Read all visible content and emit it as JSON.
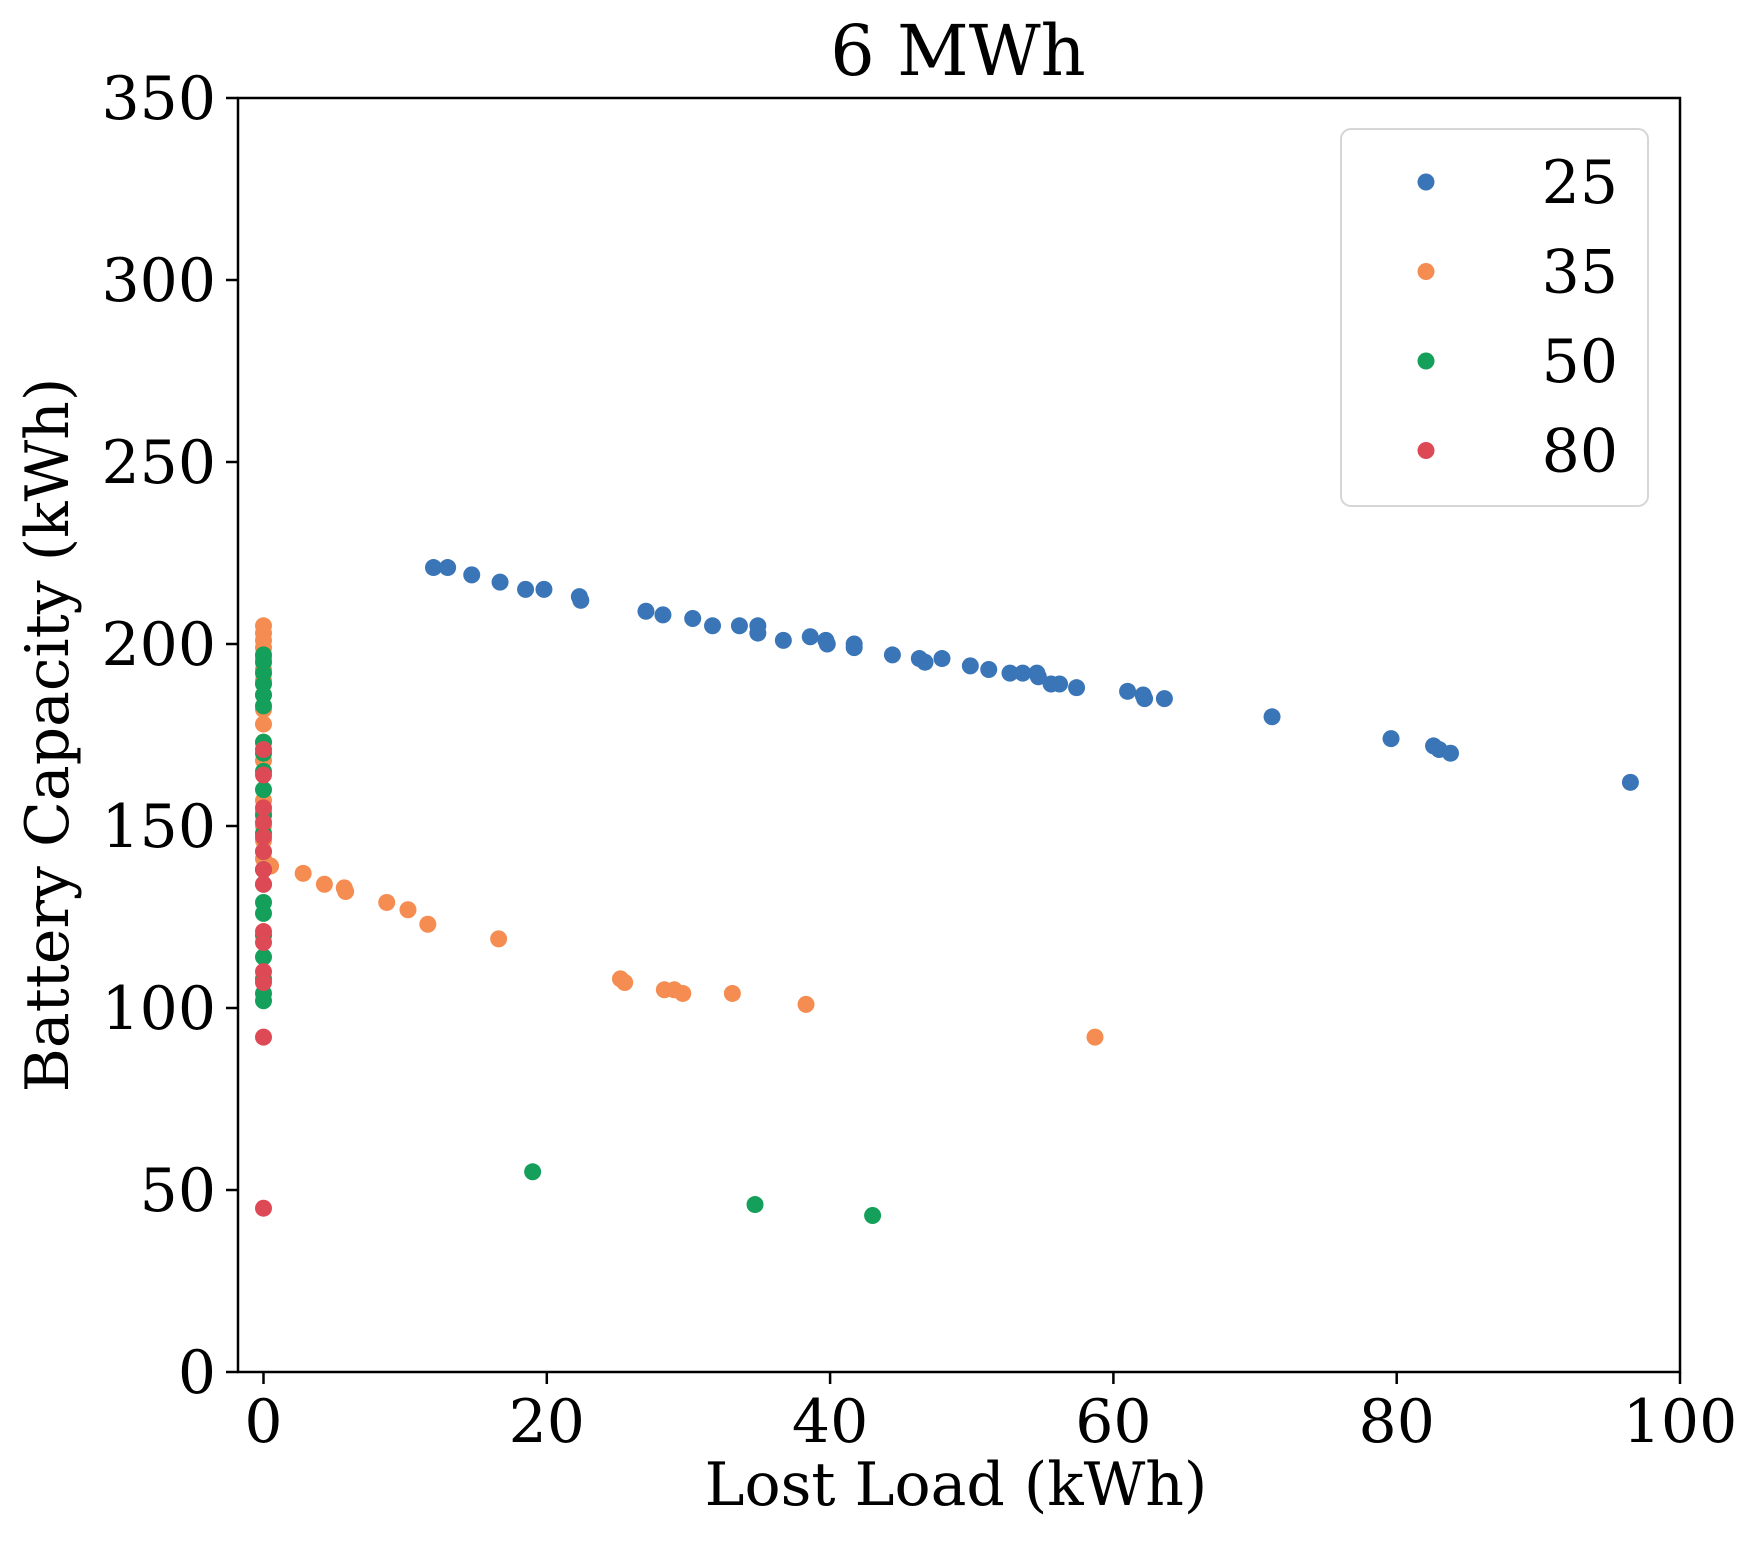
{
  "chart_data": {
    "type": "scatter",
    "title": "6 MWh",
    "xlabel": "Lost Load (kWh)",
    "ylabel": "Battery Capacity (kWh)",
    "xlim": [
      -1.8,
      100
    ],
    "ylim": [
      0,
      350
    ],
    "xticks": [
      "0",
      "20",
      "40",
      "60",
      "80",
      "100"
    ],
    "xtick_values": [
      0,
      20,
      40,
      60,
      80,
      100
    ],
    "yticks": [
      "0",
      "50",
      "100",
      "150",
      "200",
      "250",
      "300",
      "350"
    ],
    "ytick_values": [
      0,
      50,
      100,
      150,
      200,
      250,
      300,
      350
    ],
    "grid": false,
    "legend_position": "top-right",
    "series": [
      {
        "name": "25",
        "color": "#3a75b8",
        "points": [
          [
            12.0,
            221
          ],
          [
            13.0,
            221
          ],
          [
            14.7,
            219
          ],
          [
            16.7,
            217
          ],
          [
            18.5,
            215
          ],
          [
            19.8,
            215
          ],
          [
            22.3,
            213
          ],
          [
            22.4,
            212
          ],
          [
            27.0,
            209
          ],
          [
            28.2,
            208
          ],
          [
            30.3,
            207
          ],
          [
            31.7,
            205
          ],
          [
            33.6,
            205
          ],
          [
            34.9,
            205
          ],
          [
            34.9,
            203
          ],
          [
            36.7,
            201
          ],
          [
            38.6,
            202
          ],
          [
            39.7,
            201
          ],
          [
            39.8,
            200
          ],
          [
            41.7,
            200
          ],
          [
            41.7,
            199
          ],
          [
            44.4,
            197
          ],
          [
            46.3,
            196
          ],
          [
            46.7,
            195
          ],
          [
            47.9,
            196
          ],
          [
            49.9,
            194
          ],
          [
            51.2,
            193
          ],
          [
            52.7,
            192
          ],
          [
            53.6,
            192
          ],
          [
            54.6,
            192
          ],
          [
            54.7,
            191
          ],
          [
            55.6,
            189
          ],
          [
            56.2,
            189
          ],
          [
            57.4,
            188
          ],
          [
            61.0,
            187
          ],
          [
            62.1,
            186
          ],
          [
            62.2,
            185
          ],
          [
            63.6,
            185
          ],
          [
            71.2,
            180
          ],
          [
            79.6,
            174
          ],
          [
            82.6,
            172
          ],
          [
            83.0,
            171
          ],
          [
            83.8,
            170
          ],
          [
            96.5,
            162
          ]
        ]
      },
      {
        "name": "35",
        "color": "#f58c51",
        "points": [
          [
            0,
            205
          ],
          [
            0,
            203
          ],
          [
            0,
            201
          ],
          [
            0,
            199
          ],
          [
            0,
            196
          ],
          [
            0,
            193
          ],
          [
            0,
            190
          ],
          [
            0,
            186
          ],
          [
            0,
            182
          ],
          [
            0,
            178
          ],
          [
            0,
            173
          ],
          [
            0,
            168
          ],
          [
            0,
            157
          ],
          [
            0,
            154
          ],
          [
            0,
            150
          ],
          [
            0,
            146
          ],
          [
            0,
            141
          ],
          [
            0,
            138
          ],
          [
            0.5,
            139
          ],
          [
            2.8,
            137
          ],
          [
            4.3,
            134
          ],
          [
            5.7,
            133
          ],
          [
            5.8,
            132
          ],
          [
            8.7,
            129
          ],
          [
            10.2,
            127
          ],
          [
            11.6,
            123
          ],
          [
            16.6,
            119
          ],
          [
            25.2,
            108
          ],
          [
            25.5,
            107
          ],
          [
            28.3,
            105
          ],
          [
            29.0,
            105
          ],
          [
            29.6,
            104
          ],
          [
            33.1,
            104
          ],
          [
            38.3,
            101
          ],
          [
            58.7,
            92
          ]
        ]
      },
      {
        "name": "50",
        "color": "#149f5a",
        "points": [
          [
            0,
            197
          ],
          [
            0,
            195
          ],
          [
            0,
            192
          ],
          [
            0,
            189
          ],
          [
            0,
            186
          ],
          [
            0,
            183
          ],
          [
            0,
            173
          ],
          [
            0,
            170
          ],
          [
            0,
            165
          ],
          [
            0,
            160
          ],
          [
            0,
            153
          ],
          [
            0,
            148
          ],
          [
            0,
            143
          ],
          [
            0,
            138
          ],
          [
            0,
            134
          ],
          [
            0,
            129
          ],
          [
            0,
            126
          ],
          [
            0,
            120
          ],
          [
            0,
            114
          ],
          [
            0,
            108
          ],
          [
            0,
            104
          ],
          [
            0,
            102
          ],
          [
            19.0,
            55
          ],
          [
            34.7,
            46
          ],
          [
            43.0,
            43
          ]
        ]
      },
      {
        "name": "80",
        "color": "#dd4a56",
        "points": [
          [
            0,
            171
          ],
          [
            0,
            164
          ],
          [
            0,
            155
          ],
          [
            0,
            151
          ],
          [
            0,
            147
          ],
          [
            0,
            143
          ],
          [
            0,
            138
          ],
          [
            0,
            134
          ],
          [
            0,
            121
          ],
          [
            0,
            118
          ],
          [
            0,
            110
          ],
          [
            0,
            107
          ],
          [
            0,
            92
          ],
          [
            0,
            45
          ]
        ]
      }
    ]
  }
}
